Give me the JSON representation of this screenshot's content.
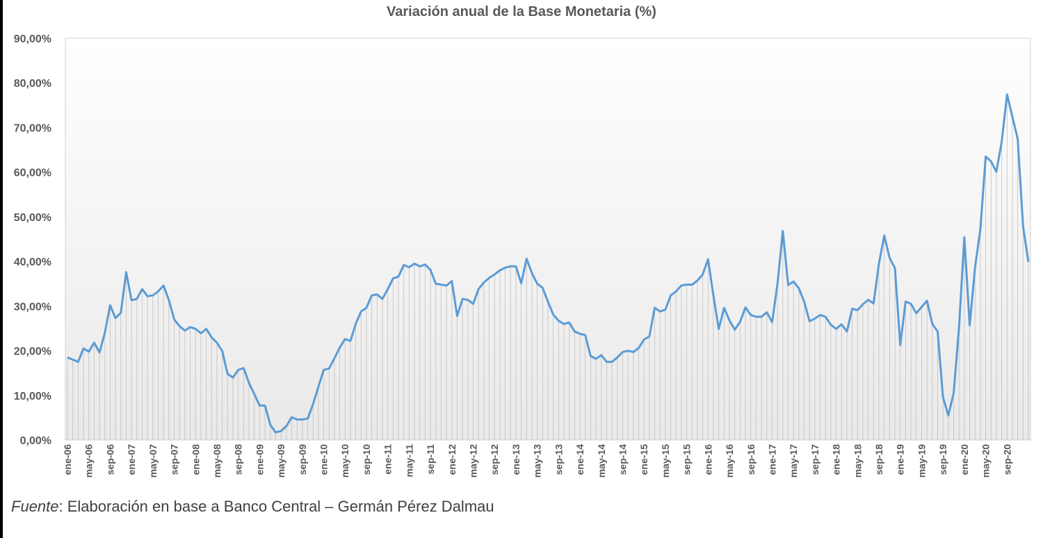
{
  "chart_data": {
    "type": "area",
    "title": "Variación anual de la Base Monetaria (%)",
    "xlabel": "",
    "ylabel": "",
    "ylim": [
      0,
      90
    ],
    "y_tick_labels": [
      "0,00%",
      "10,00%",
      "20,00%",
      "30,00%",
      "40,00%",
      "50,00%",
      "60,00%",
      "70,00%",
      "80,00%",
      "90,00%"
    ],
    "y_tick_values": [
      0,
      10,
      20,
      30,
      40,
      50,
      60,
      70,
      80,
      90
    ],
    "x_tick_labels": [
      "ene-06",
      "may-06",
      "sep-06",
      "ene-07",
      "may-07",
      "sep-07",
      "ene-08",
      "may-08",
      "sep-08",
      "ene-09",
      "may-09",
      "sep-09",
      "ene-10",
      "may-10",
      "sep-10",
      "ene-11",
      "may-11",
      "sep-11",
      "ene-12",
      "may-12",
      "sep-12",
      "ene-13",
      "may-13",
      "sep-13",
      "ene-14",
      "may-14",
      "sep-14",
      "ene-15",
      "may-15",
      "sep-15",
      "ene-16",
      "may-16",
      "sep-16",
      "ene-17",
      "may-17",
      "sep-17",
      "ene-18",
      "may-18",
      "sep-18",
      "ene-19",
      "may-19",
      "sep-19",
      "ene-20",
      "may-20",
      "sep-20"
    ],
    "x_tick_months_since_start": [
      0,
      4,
      8,
      12,
      16,
      20,
      24,
      28,
      32,
      36,
      40,
      44,
      48,
      52,
      56,
      60,
      64,
      68,
      72,
      76,
      80,
      84,
      88,
      92,
      96,
      100,
      104,
      108,
      112,
      116,
      120,
      124,
      128,
      132,
      136,
      140,
      144,
      148,
      152,
      156,
      160,
      164,
      168,
      172,
      176
    ],
    "grid": false,
    "legend": "none",
    "line_color": "#5b9bd5",
    "series": [
      {
        "name": "",
        "values": [
          18.5,
          18.0,
          17.5,
          20.5,
          19.8,
          21.8,
          19.6,
          24.0,
          30.2,
          27.3,
          28.5,
          37.6,
          31.3,
          31.6,
          33.8,
          32.2,
          32.4,
          33.3,
          34.6,
          31.3,
          27.0,
          25.5,
          24.5,
          25.3,
          24.9,
          23.9,
          24.9,
          23.0,
          21.8,
          19.9,
          14.8,
          14.0,
          15.7,
          16.1,
          12.8,
          10.3,
          7.7,
          7.7,
          3.4,
          1.7,
          2.0,
          3.1,
          5.1,
          4.6,
          4.6,
          4.8,
          8.0,
          11.9,
          15.7,
          16.0,
          18.3,
          20.7,
          22.6,
          22.2,
          26.0,
          28.8,
          29.6,
          32.4,
          32.6,
          31.6,
          33.8,
          36.2,
          36.6,
          39.2,
          38.7,
          39.5,
          38.9,
          39.3,
          38.1,
          35.0,
          34.8,
          34.6,
          35.6,
          27.8,
          31.6,
          31.4,
          30.5,
          33.8,
          35.3,
          36.3,
          37.1,
          38.0,
          38.6,
          38.9,
          38.9,
          35.1,
          40.6,
          37.4,
          35.0,
          34.1,
          31.0,
          28.1,
          26.7,
          26.0,
          26.3,
          24.3,
          23.8,
          23.5,
          18.8,
          18.2,
          19.0,
          17.5,
          17.5,
          18.5,
          19.7,
          20.0,
          19.7,
          20.6,
          22.5,
          23.2,
          29.6,
          28.8,
          29.2,
          32.4,
          33.3,
          34.6,
          34.8,
          34.8,
          35.7,
          37.1,
          40.5,
          32.3,
          24.9,
          29.6,
          26.8,
          24.7,
          26.5,
          29.7,
          28.0,
          27.6,
          27.6,
          28.6,
          26.4,
          35.0,
          46.8,
          34.7,
          35.5,
          34.0,
          31.0,
          26.6,
          27.2,
          28.0,
          27.6,
          25.8,
          24.9,
          25.9,
          24.3,
          29.4,
          29.1,
          30.4,
          31.4,
          30.6,
          39.5,
          45.8,
          40.8,
          38.5,
          21.3,
          31.0,
          30.5,
          28.4,
          29.8,
          31.2,
          26.0,
          24.3,
          9.6,
          5.5,
          10.5,
          25.1,
          45.4,
          25.7,
          38.6,
          47.2,
          63.5,
          62.4,
          60.1,
          66.8,
          77.4,
          72.4,
          67.4,
          47.9,
          39.9
        ]
      }
    ]
  },
  "source": {
    "label": "Fuente",
    "text": ": Elaboración en base a Banco Central – Germán Pérez Dalmau"
  }
}
